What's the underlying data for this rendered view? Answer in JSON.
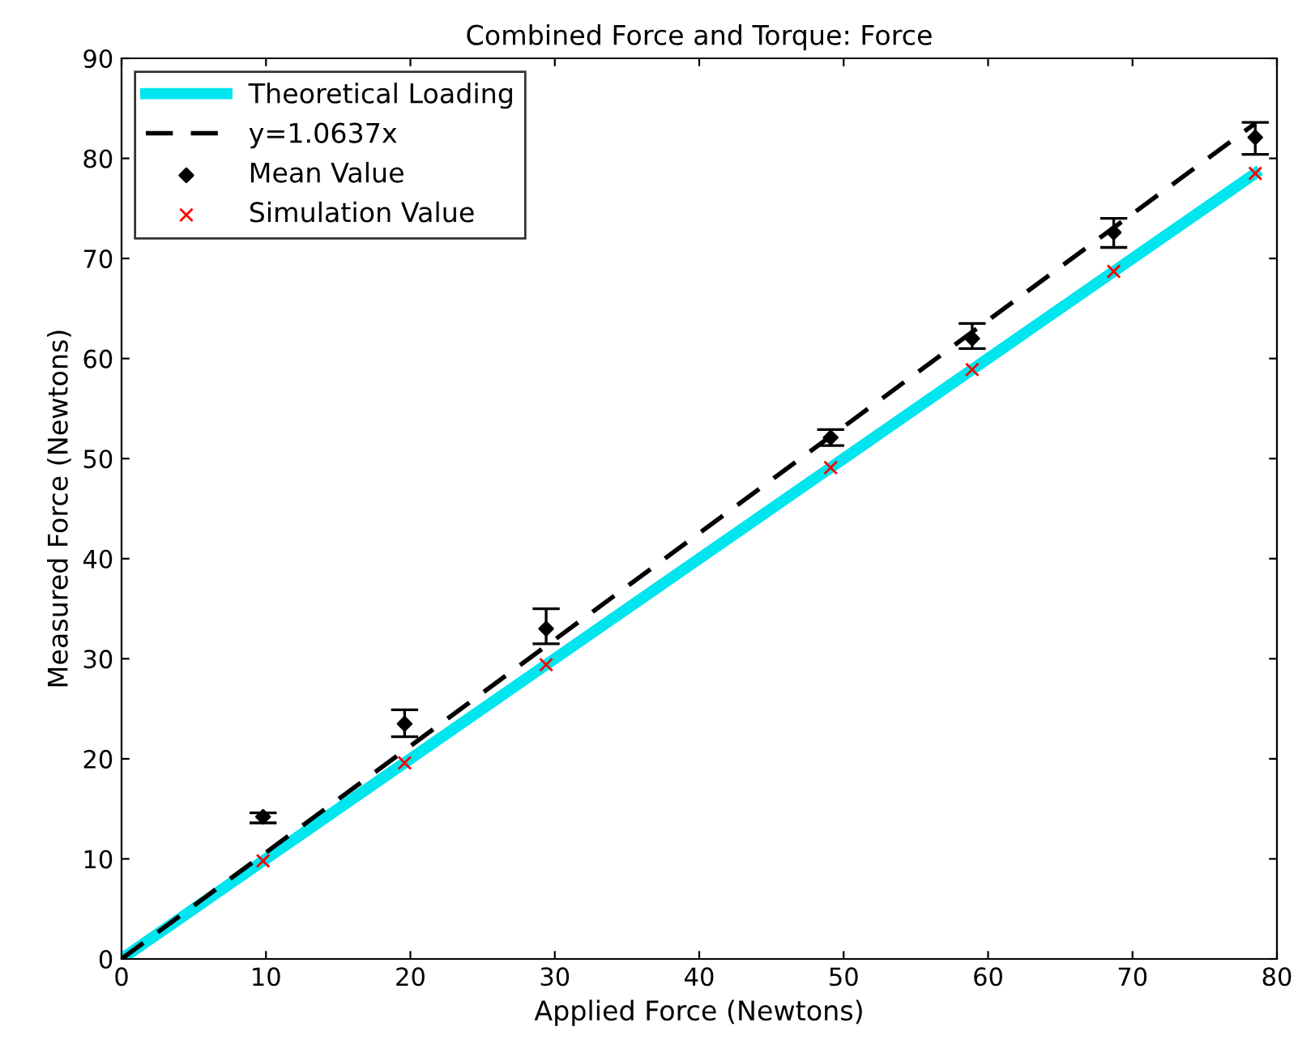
{
  "chart_data": {
    "type": "line",
    "title": "Combined Force and Torque: Force",
    "xlabel": "Applied Force (Newtons)",
    "ylabel": "Measured Force (Newtons)",
    "xlim": [
      0,
      80
    ],
    "ylim": [
      0,
      90
    ],
    "xticks": [
      0,
      10,
      20,
      30,
      40,
      50,
      60,
      70,
      80
    ],
    "yticks": [
      0,
      10,
      20,
      30,
      40,
      50,
      60,
      70,
      80,
      90
    ],
    "legend": "top left",
    "series": [
      {
        "name": "Theoretical Loading",
        "color": "#00e5ee",
        "x": [
          0,
          78.5
        ],
        "values": [
          0,
          78.5
        ],
        "line_style": "solid"
      },
      {
        "name": "y=1.0637x",
        "color": "#000000",
        "x": [
          0,
          78.5
        ],
        "values": [
          0,
          83.5
        ],
        "line_style": "dashed"
      },
      {
        "name": "Mean Value",
        "type": "scatter",
        "color": "#000000",
        "marker": "diamond",
        "x": [
          9.8,
          19.6,
          29.4,
          49.1,
          58.9,
          68.7,
          78.5
        ],
        "values": [
          14.2,
          23.5,
          33,
          52.1,
          62,
          72.6,
          82.1
        ],
        "errors": [
          [
            13.6,
            14.6
          ],
          [
            22.2,
            24.9
          ],
          [
            31.5,
            35
          ],
          [
            51.3,
            52.9
          ],
          [
            61,
            63.5
          ],
          [
            71.1,
            74.0
          ],
          [
            80.4,
            83.6
          ]
        ]
      },
      {
        "name": "Simulation Value",
        "type": "scatter",
        "color": "#ff0000",
        "marker": "cross",
        "x": [
          9.8,
          19.6,
          29.4,
          49.1,
          58.9,
          68.7,
          78.5
        ],
        "values": [
          9.8,
          19.6,
          29.4,
          49.1,
          58.9,
          68.7,
          78.5
        ]
      }
    ]
  }
}
